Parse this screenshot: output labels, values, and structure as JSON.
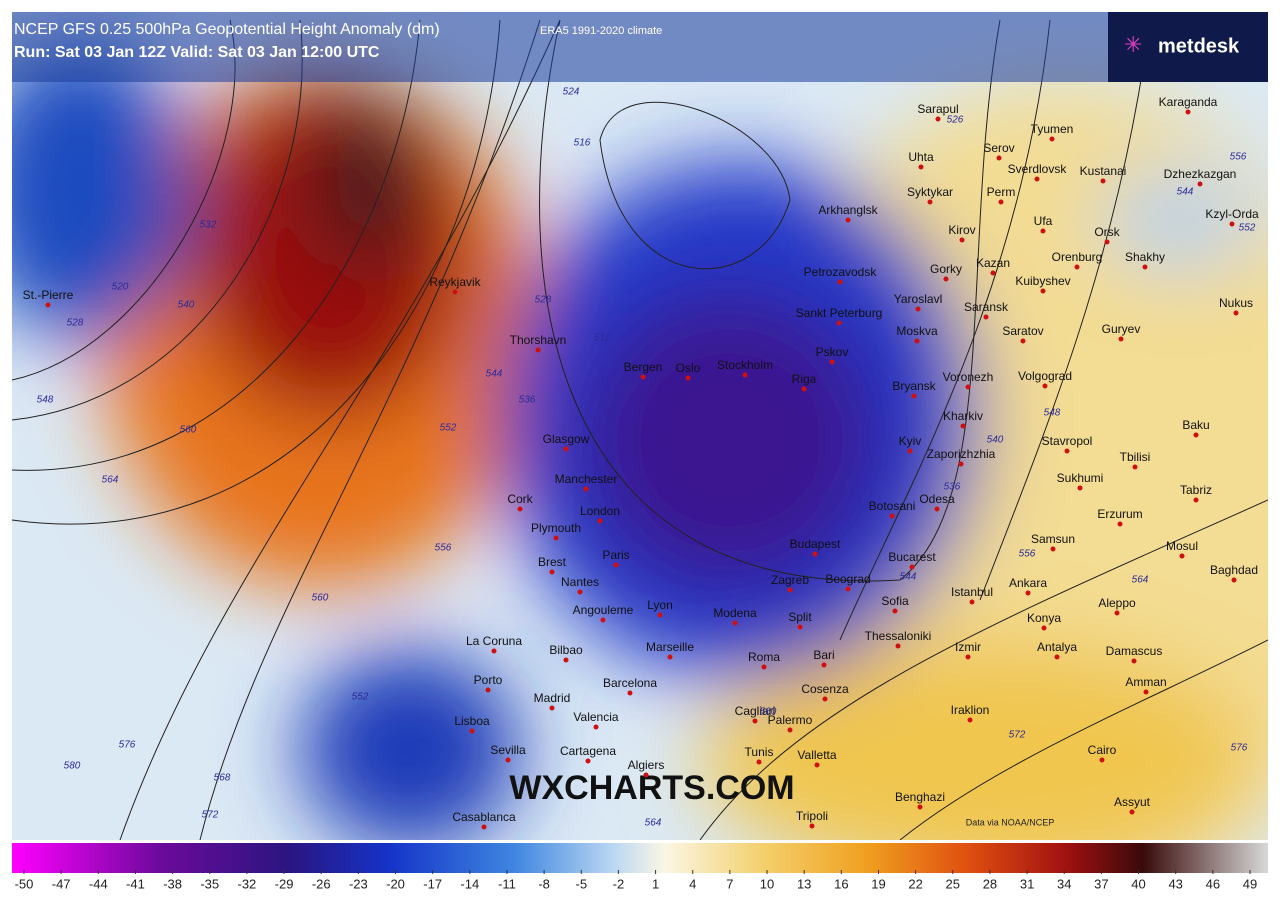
{
  "header": {
    "title": "NCEP GFS 0.25 500hPa Geopotential Height Anomaly (dm)",
    "climate": "ERA5 1991-2020 climate",
    "run": "Run: Sat 03 Jan 12Z Valid: Sat 03 Jan 12:00 UTC"
  },
  "brand": "metdesk",
  "watermark": "WXCHARTS.COM",
  "credit": "Data via NOAA/NCEP",
  "legend": {
    "ticks": [
      -50,
      -47,
      -44,
      -41,
      -38,
      -35,
      -32,
      -29,
      -26,
      -23,
      -20,
      -17,
      -14,
      -11,
      -8,
      -5,
      -2,
      1,
      4,
      7,
      10,
      13,
      16,
      19,
      22,
      25,
      28,
      31,
      34,
      37,
      40,
      43,
      46,
      49
    ]
  },
  "cities": [
    "Karaganda",
    "Sarapul",
    "Tyumen",
    "Uhta",
    "Serov",
    "Sverdlovsk",
    "Kustanai",
    "Dzhezkazgan",
    "Syktykar",
    "Perm",
    "Arkhanglsk",
    "Kzyl-Orda",
    "Ufa",
    "Kirov",
    "Orsk",
    "Gorky",
    "Kazan",
    "Orenburg",
    "Shakhy",
    "Petrozavodsk",
    "Kuibyshev",
    "Yaroslavl",
    "Saransk",
    "Nukus",
    "Sankt Peterburg",
    "Moskva",
    "Saratov",
    "Guryev",
    "Reykjavik",
    "Thorshavn",
    "Bergen",
    "Oslo",
    "Stockholm",
    "Pskov",
    "Riga",
    "Bryansk",
    "Voronezh",
    "Volgograd",
    "Kharkiv",
    "Kyiv",
    "Zaporizhzhia",
    "Odesa",
    "Botosani",
    "Bucarest",
    "Stavropol",
    "Tbilisi",
    "Sukhumi",
    "Baku",
    "Tabriz",
    "Erzurum",
    "Samsun",
    "Mosul",
    "Baghdad",
    "Ankara",
    "Istanbul",
    "Aleppo",
    "Konya",
    "Antalya",
    "Damascus",
    "Amman",
    "Izmir",
    "Iraklion",
    "Cairo",
    "Assyut",
    "Benghazi",
    "Tripoli",
    "Valletta",
    "Tunis",
    "Algiers",
    "Palermo",
    "Cagliari",
    "Cosenza",
    "Bari",
    "Roma",
    "Split",
    "Sofia",
    "Thessaloniki",
    "Beograd",
    "Zagreb",
    "Budapest",
    "Modena",
    "Marseille",
    "Lyon",
    "Paris",
    "Brest",
    "Nantes",
    "Angouleme",
    "Bilbao",
    "La Coruna",
    "Porto",
    "Madrid",
    "Barcelona",
    "Valencia",
    "Cartagena",
    "Sevilla",
    "Lisboa",
    "Casablanca",
    "London",
    "Plymouth",
    "Manchester",
    "Glasgow",
    "Cork",
    "St.-Pierre"
  ],
  "contour_labels": [
    520,
    528,
    532,
    540,
    548,
    560,
    564,
    524,
    516,
    528,
    512,
    544,
    552,
    536,
    556,
    560,
    552,
    568,
    572,
    576,
    580,
    564,
    560,
    572,
    576,
    556,
    548,
    540,
    536,
    544,
    526,
    556,
    552,
    544,
    564
  ]
}
